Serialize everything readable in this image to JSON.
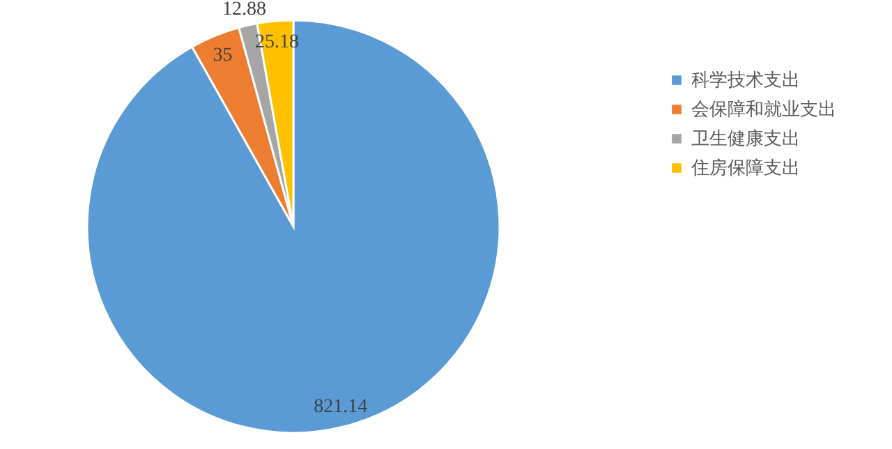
{
  "chart_data": {
    "type": "pie",
    "categories": [
      "科学技术支出",
      "会保障和就业支出",
      "卫生健康支出",
      "住房保障支出"
    ],
    "values": [
      821.14,
      35,
      12.88,
      25.18
    ],
    "colors": [
      "#5b9bd5",
      "#ed7d31",
      "#a5a5a5",
      "#ffc000"
    ],
    "data_labels": true,
    "legend": "right"
  }
}
